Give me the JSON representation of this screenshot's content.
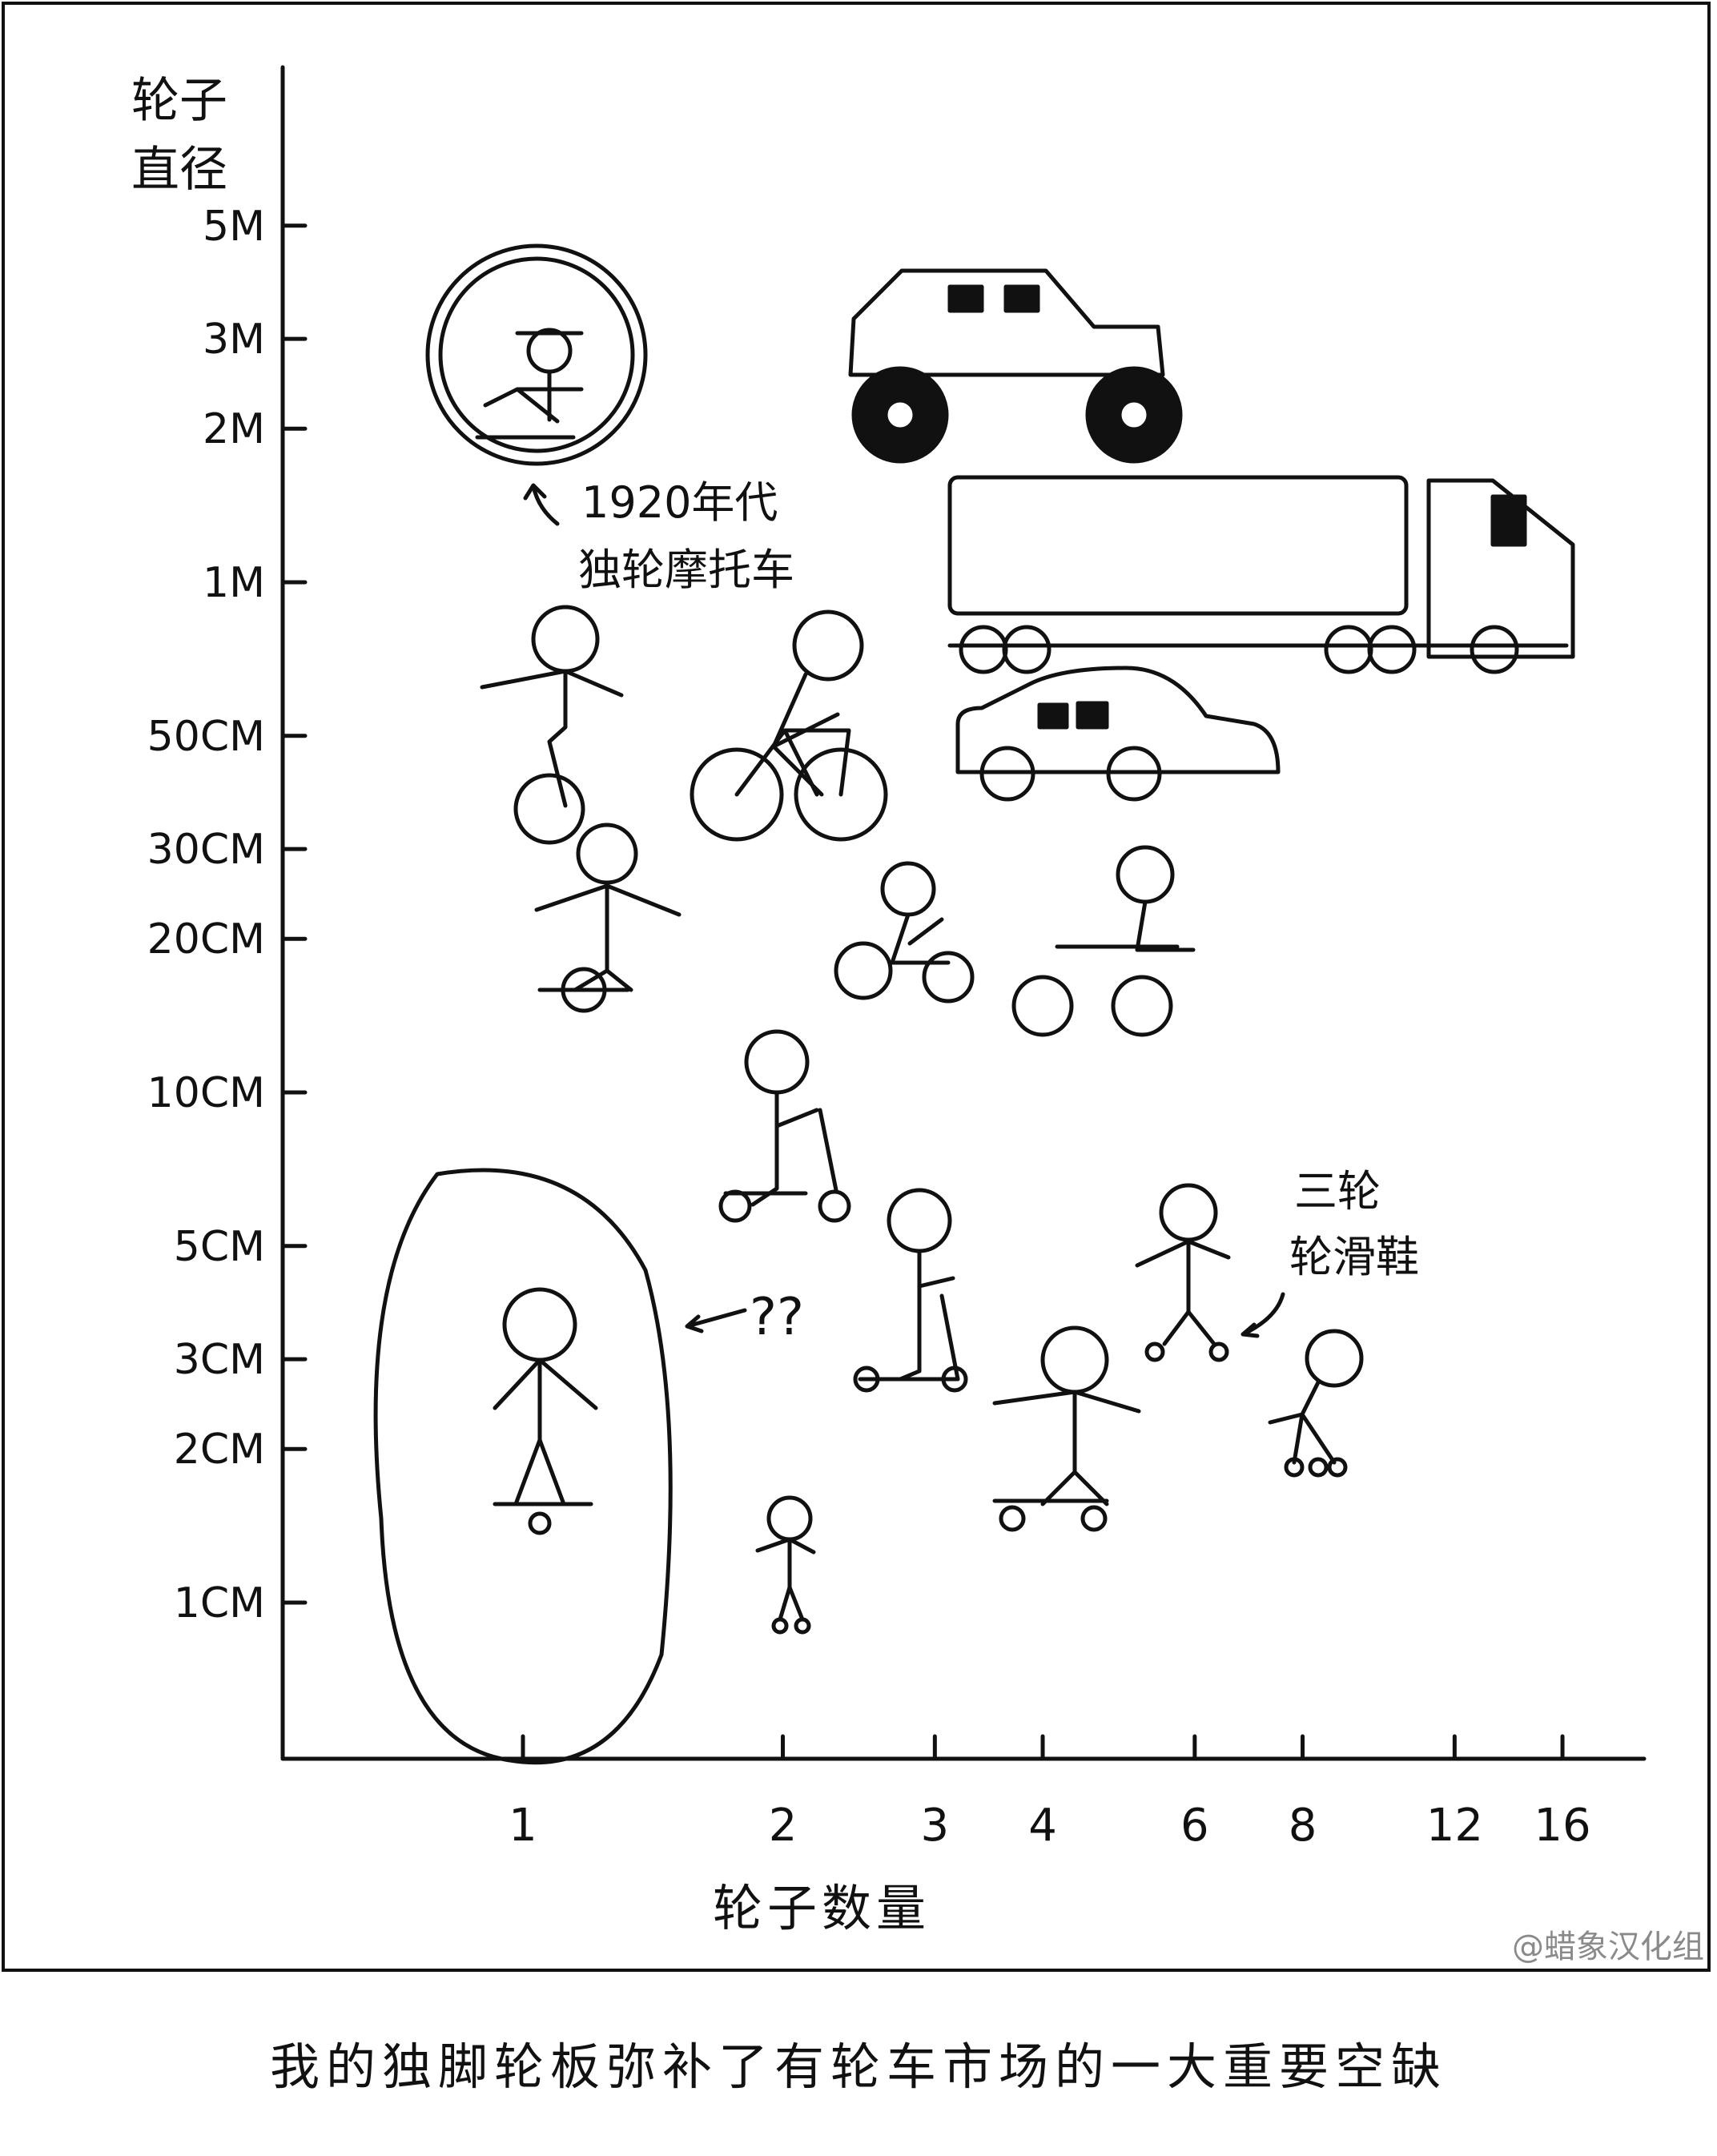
{
  "chart_data": {
    "type": "scatter",
    "ylabel_lines": [
      "轮子",
      "直径"
    ],
    "xlabel": "轮子数量",
    "x_scale": "log",
    "y_scale": "log",
    "x_ticks": [
      1,
      2,
      3,
      4,
      6,
      8,
      12,
      16
    ],
    "y_ticks": [
      "1CM",
      "2CM",
      "3CM",
      "5CM",
      "10CM",
      "20CM",
      "30CM",
      "50CM",
      "1M",
      "2M",
      "3M",
      "5M"
    ],
    "points": [
      {
        "item": "monowheel",
        "wheels": 1,
        "diameter_cm": 300
      },
      {
        "item": "unicycle",
        "wheels": 1,
        "diameter_cm": 60
      },
      {
        "item": "onewheel-board",
        "wheels": 1,
        "diameter_cm": 25
      },
      {
        "item": "single-wheel-skateboard",
        "wheels": 1,
        "diameter_cm": 1.6
      },
      {
        "item": "bicycle",
        "wheels": 2,
        "diameter_cm": 65
      },
      {
        "item": "kick-scooter",
        "wheels": 2,
        "diameter_cm": 10
      },
      {
        "item": "heelys-kid",
        "wheels": 2,
        "diameter_cm": 1
      },
      {
        "item": "tricycle",
        "wheels": 3,
        "diameter_cm": 22
      },
      {
        "item": "three-wheel-scooter",
        "wheels": 3,
        "diameter_cm": 3.6
      },
      {
        "item": "monster-truck",
        "wheels": 4,
        "diameter_cm": 170
      },
      {
        "item": "car",
        "wheels": 4,
        "diameter_cm": 65
      },
      {
        "item": "skateboard",
        "wheels": 4,
        "diameter_cm": 2
      },
      {
        "item": "atv",
        "wheels": 4,
        "diameter_cm": 20
      },
      {
        "item": "semi-truck",
        "wheels": 18,
        "diameter_cm": 100
      },
      {
        "item": "three-wheel-skates",
        "wheels": 6,
        "diameter_cm": 7
      },
      {
        "item": "inline-skates",
        "wheels": 8,
        "diameter_cm": 2.6
      }
    ],
    "annotations": {
      "monowheel_line1": "1920年代",
      "monowheel_line2": "独轮摩托车",
      "skates_line1": "三轮",
      "skates_line2": "轮滑鞋",
      "gap": "??"
    },
    "grid": false,
    "legend": "none"
  },
  "caption": "我的独脚轮板弥补了有轮车市场的一大重要空缺",
  "watermark": "@蜡象汉化组",
  "colors": {
    "ink": "#111111",
    "background": "#ffffff",
    "watermark": "#8a8a8a"
  }
}
